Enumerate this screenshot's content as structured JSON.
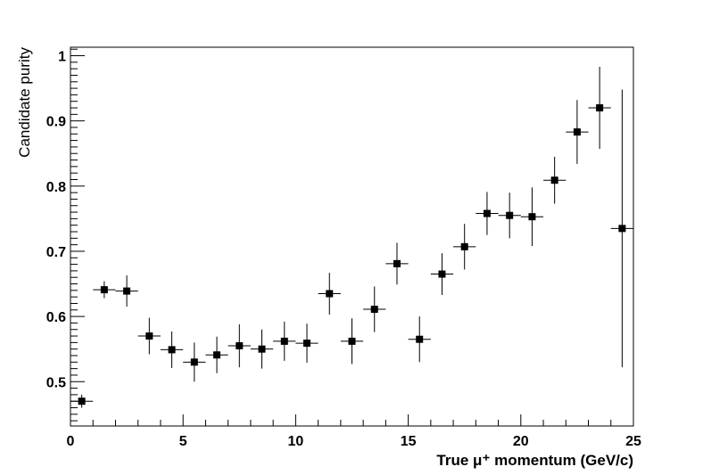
{
  "chart_data": {
    "type": "scatter",
    "xlabel": "True μ⁺ momentum (GeV/c)",
    "ylabel": "Candidate purity",
    "xlim": [
      0,
      25
    ],
    "ylim": [
      0.432,
      1.013
    ],
    "x_ticks": [
      0,
      5,
      10,
      15,
      20,
      25
    ],
    "y_ticks": [
      0.5,
      0.6,
      0.7,
      0.8,
      0.9,
      1
    ],
    "x_tick_labels": [
      "0",
      "5",
      "10",
      "15",
      "20",
      "25"
    ],
    "y_tick_labels": [
      "0.5",
      "0.6",
      "0.7",
      "0.8",
      "0.9",
      "1"
    ],
    "grid": false,
    "marker": "filled-square",
    "colors": {
      "axis": "#000000",
      "marker": "#000000"
    },
    "points": [
      {
        "x": 0.5,
        "y": 0.47,
        "xerr": 0.5,
        "yerr_low": 0.01,
        "yerr_high": 0.01
      },
      {
        "x": 1.5,
        "y": 0.641,
        "xerr": 0.5,
        "yerr_low": 0.013,
        "yerr_high": 0.013
      },
      {
        "x": 2.5,
        "y": 0.639,
        "xerr": 0.5,
        "yerr_low": 0.024,
        "yerr_high": 0.024
      },
      {
        "x": 3.5,
        "y": 0.57,
        "xerr": 0.5,
        "yerr_low": 0.028,
        "yerr_high": 0.028
      },
      {
        "x": 4.5,
        "y": 0.549,
        "xerr": 0.5,
        "yerr_low": 0.028,
        "yerr_high": 0.028
      },
      {
        "x": 5.5,
        "y": 0.53,
        "xerr": 0.5,
        "yerr_low": 0.03,
        "yerr_high": 0.03
      },
      {
        "x": 6.5,
        "y": 0.541,
        "xerr": 0.5,
        "yerr_low": 0.028,
        "yerr_high": 0.028
      },
      {
        "x": 7.5,
        "y": 0.555,
        "xerr": 0.5,
        "yerr_low": 0.033,
        "yerr_high": 0.033
      },
      {
        "x": 8.5,
        "y": 0.55,
        "xerr": 0.5,
        "yerr_low": 0.03,
        "yerr_high": 0.03
      },
      {
        "x": 9.5,
        "y": 0.562,
        "xerr": 0.5,
        "yerr_low": 0.03,
        "yerr_high": 0.03
      },
      {
        "x": 10.5,
        "y": 0.559,
        "xerr": 0.5,
        "yerr_low": 0.03,
        "yerr_high": 0.03
      },
      {
        "x": 11.5,
        "y": 0.635,
        "xerr": 0.5,
        "yerr_low": 0.032,
        "yerr_high": 0.032
      },
      {
        "x": 12.5,
        "y": 0.562,
        "xerr": 0.5,
        "yerr_low": 0.035,
        "yerr_high": 0.035
      },
      {
        "x": 13.5,
        "y": 0.611,
        "xerr": 0.5,
        "yerr_low": 0.035,
        "yerr_high": 0.035
      },
      {
        "x": 14.5,
        "y": 0.681,
        "xerr": 0.5,
        "yerr_low": 0.032,
        "yerr_high": 0.032
      },
      {
        "x": 15.5,
        "y": 0.565,
        "xerr": 0.5,
        "yerr_low": 0.035,
        "yerr_high": 0.035
      },
      {
        "x": 16.5,
        "y": 0.665,
        "xerr": 0.5,
        "yerr_low": 0.032,
        "yerr_high": 0.032
      },
      {
        "x": 17.5,
        "y": 0.707,
        "xerr": 0.5,
        "yerr_low": 0.035,
        "yerr_high": 0.035
      },
      {
        "x": 18.5,
        "y": 0.758,
        "xerr": 0.5,
        "yerr_low": 0.033,
        "yerr_high": 0.033
      },
      {
        "x": 19.5,
        "y": 0.755,
        "xerr": 0.5,
        "yerr_low": 0.035,
        "yerr_high": 0.035
      },
      {
        "x": 20.5,
        "y": 0.753,
        "xerr": 0.5,
        "yerr_low": 0.045,
        "yerr_high": 0.045
      },
      {
        "x": 21.5,
        "y": 0.809,
        "xerr": 0.5,
        "yerr_low": 0.036,
        "yerr_high": 0.036
      },
      {
        "x": 22.5,
        "y": 0.883,
        "xerr": 0.5,
        "yerr_low": 0.049,
        "yerr_high": 0.049
      },
      {
        "x": 23.5,
        "y": 0.92,
        "xerr": 0.5,
        "yerr_low": 0.063,
        "yerr_high": 0.063
      },
      {
        "x": 24.5,
        "y": 0.735,
        "xerr": 0.5,
        "yerr_low": 0.213,
        "yerr_high": 0.213
      }
    ]
  }
}
